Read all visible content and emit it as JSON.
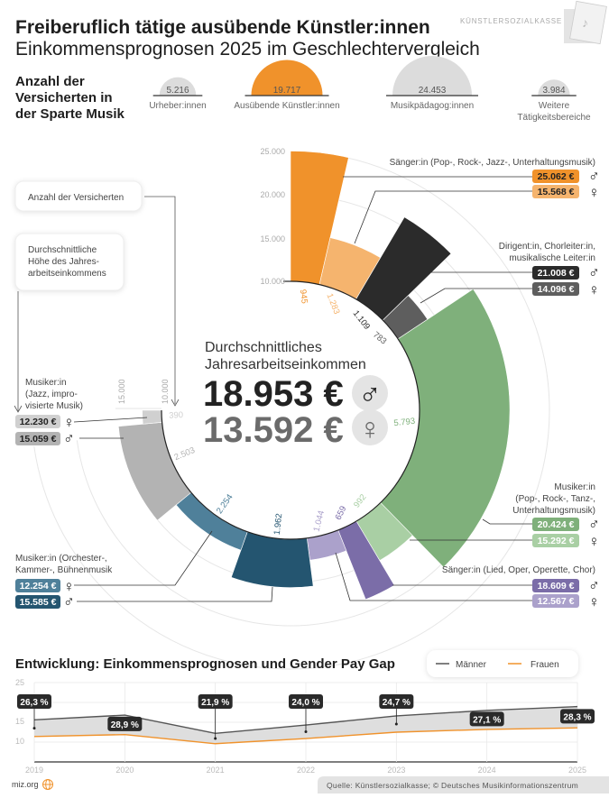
{
  "header": {
    "title": "Freiberuflich tätige ausübende Künstler:innen",
    "subtitle": "Einkommensprognosen 2025 im Geschlechtervergleich",
    "logo_text": "KÜNSTLERSOZIALKASSE"
  },
  "insured": {
    "heading_lines": [
      "Anzahl der",
      "Versicherten in",
      "der Sparte Musik"
    ],
    "groups": [
      {
        "label_lines": [
          "Urheber:innen"
        ],
        "value": "5.216",
        "count": 5216,
        "highlight": false
      },
      {
        "label_lines": [
          "Ausübende Künstler:innen"
        ],
        "value": "19.717",
        "count": 19717,
        "highlight": true
      },
      {
        "label_lines": [
          "Musikpädagog:innen"
        ],
        "value": "24.453",
        "count": 24453,
        "highlight": false
      },
      {
        "label_lines": [
          "Weitere",
          "Tätigkeitsbereiche"
        ],
        "value": "3.984",
        "count": 3984,
        "highlight": false
      }
    ],
    "highlight_color": "#F0922B",
    "base_color": "#DCDCDC"
  },
  "legend_boxes": {
    "count": "Anzahl der Versicherten",
    "income_lines": [
      "Durchschnittliche",
      "Höhe des Jahres-",
      "arbeitseinkommens"
    ]
  },
  "chart_data": [
    {
      "type": "radial-bar",
      "radial_axis_ticks": [
        "10.000",
        "15.000",
        "20.000",
        "25.000"
      ],
      "radial_axis_range": [
        10000,
        25000
      ],
      "angle_encodes": "Anzahl der Versicherten",
      "radius_encodes": "Durchschnittliche Höhe des Jahresarbeitseinkommens",
      "center_title_lines": [
        "Durchschnittliches",
        "Jahresarbeitseinkommen"
      ],
      "average_male": "18.953 €",
      "average_female": "13.592 €",
      "male_symbol": "♂",
      "female_symbol": "♀",
      "categories": [
        {
          "name_lines": [
            "Sänger:in (Pop-, Rock-, Jazz-, Unterhaltungsmusik)"
          ],
          "male": {
            "income": 25062,
            "income_label": "25.062 €",
            "count": 945,
            "count_label": "945",
            "color": "#F0922B"
          },
          "female": {
            "income": 15568,
            "income_label": "15.568 €",
            "count": 1283,
            "count_label": "1.283",
            "color": "#F5B46E"
          }
        },
        {
          "name_lines": [
            "Dirigent:in, Chorleiter:in,",
            "musikalische Leiter:in"
          ],
          "male": {
            "income": 21008,
            "income_label": "21.008 €",
            "count": 1109,
            "count_label": "1.109",
            "color": "#2B2B2B"
          },
          "female": {
            "income": 14096,
            "income_label": "14.096 €",
            "count": 783,
            "count_label": "783",
            "color": "#5E5E5E"
          }
        },
        {
          "name_lines": [
            "Musiker:in",
            "(Pop-, Rock-, Tanz-,",
            "Unterhaltungsmusik)"
          ],
          "male": {
            "income": 20424,
            "income_label": "20.424 €",
            "count": 5793,
            "count_label": "5.793",
            "color": "#7FB07B"
          },
          "female": {
            "income": 15292,
            "income_label": "15.292 €",
            "count": 992,
            "count_label": "992",
            "color": "#A9CFA4"
          }
        },
        {
          "name_lines": [
            "Sänger:in (Lied, Oper, Operette, Chor)"
          ],
          "male": {
            "income": 18609,
            "income_label": "18.609 €",
            "count": 659,
            "count_label": "659",
            "color": "#7B6DA8"
          },
          "female": {
            "income": 12567,
            "income_label": "12.567 €",
            "count": 1044,
            "count_label": "1.044",
            "color": "#ABA1CB"
          }
        },
        {
          "name_lines": [
            "Musiker:in (Orchester-,",
            "Kammer-, Bühnenmusik"
          ],
          "male": {
            "income": 15585,
            "income_label": "15.585 €",
            "count": 1962,
            "count_label": "1.962",
            "color": "#245570"
          },
          "female": {
            "income": 12254,
            "income_label": "12.254 €",
            "count": 2254,
            "count_label": "2.254",
            "color": "#4F809A"
          }
        },
        {
          "name_lines": [
            "Musiker:in",
            "(Jazz, impro-",
            "visierte Musik)"
          ],
          "male": {
            "income": 15059,
            "income_label": "15.059 €",
            "count": 2503,
            "count_label": "2.503",
            "color": "#B3B3B3"
          },
          "female": {
            "income": 12230,
            "income_label": "12.230 €",
            "count": 390,
            "count_label": "390",
            "color": "#D0D0D0"
          }
        }
      ]
    },
    {
      "type": "line",
      "title": "Entwicklung: Einkommensprognosen und Gender Pay Gap",
      "x": [
        "2019",
        "2020",
        "2021",
        "2022",
        "2023",
        "2024",
        "2025"
      ],
      "y_ticks": [
        "25",
        "15",
        "10"
      ],
      "ylim": [
        5,
        25
      ],
      "grid": true,
      "legend_position": "top-right",
      "series": [
        {
          "name": "Männer",
          "color": "#555555",
          "values": [
            15.6,
            16.8,
            12.2,
            14.3,
            16.6,
            18.0,
            18.95
          ]
        },
        {
          "name": "Frauen",
          "color": "#F0922B",
          "values": [
            11.4,
            11.9,
            9.6,
            10.9,
            12.5,
            13.2,
            13.59
          ]
        }
      ],
      "gap_labels": [
        "26,3 %",
        "28,9 %",
        "21,9 %",
        "24,0 %",
        "24,7 %",
        "27,1 %",
        "28,3 %"
      ]
    }
  ],
  "footer": {
    "site": "miz.org",
    "source": "Quelle: Künstlersozialkasse; © Deutsches Musikinformationszentrum",
    "accent": "#F0922B"
  }
}
